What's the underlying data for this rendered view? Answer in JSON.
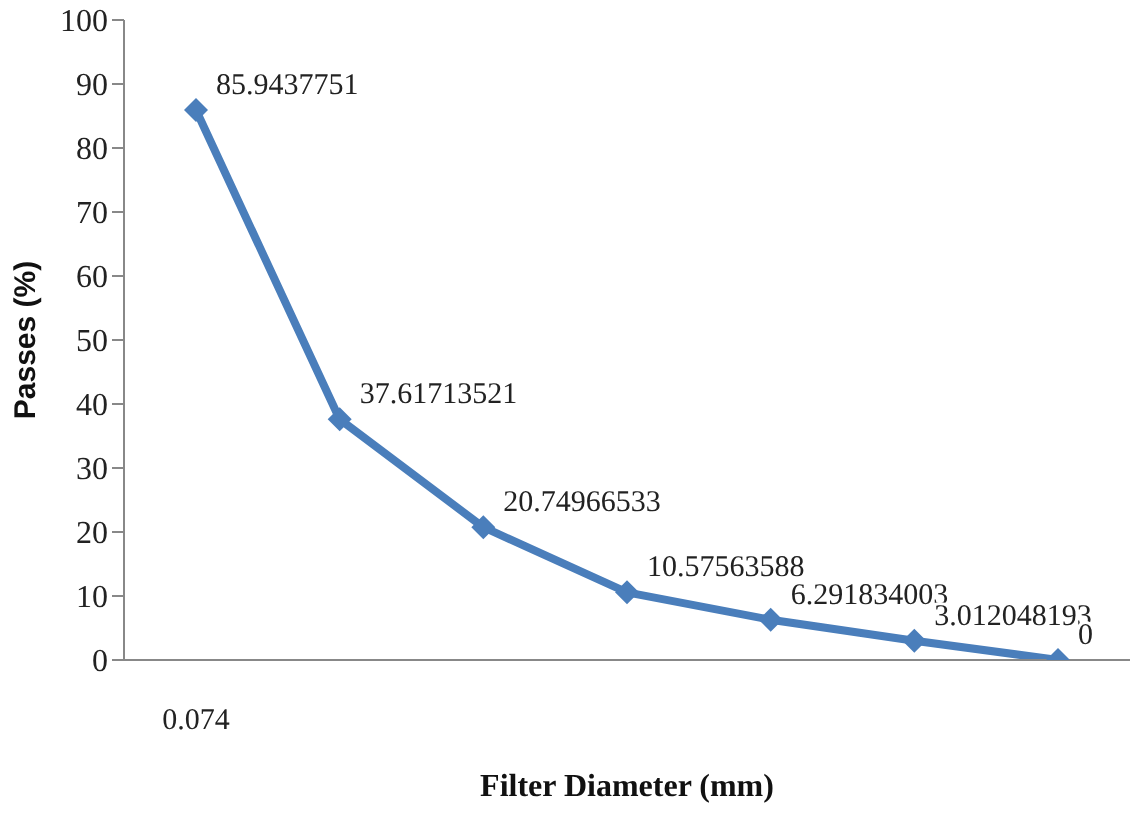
{
  "chart_data": {
    "type": "line",
    "xlabel": "Filter Diameter (mm)",
    "ylabel": "Passes (%)",
    "categories": [
      "0.074",
      null,
      null,
      null,
      null,
      null,
      null
    ],
    "series": [
      {
        "color": "#4a7ebb",
        "values": [
          85.9437751,
          37.61713521,
          20.74966533,
          10.57563588,
          6.291834003,
          3.012048193,
          0
        ]
      }
    ],
    "ylim": [
      0,
      100
    ],
    "yticks": [
      0,
      10,
      20,
      30,
      40,
      50,
      60,
      70,
      80,
      90,
      100
    ],
    "grid": false,
    "legend": false,
    "marker": "diamond",
    "line_style": "solid",
    "data_labels": true
  }
}
